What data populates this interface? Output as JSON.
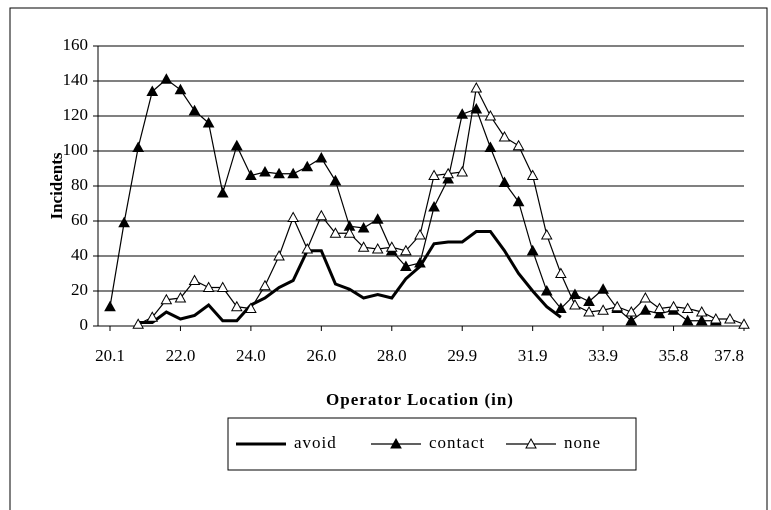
{
  "chart_data": {
    "type": "line",
    "y_label": "Incidents",
    "x_label": "Operator Location (in)",
    "categories": [
      "20.1",
      null,
      null,
      null,
      null,
      "22.0",
      null,
      null,
      null,
      null,
      "24.0",
      null,
      null,
      null,
      null,
      "26.0",
      null,
      null,
      null,
      null,
      "28.0",
      null,
      null,
      null,
      null,
      "29.9",
      null,
      null,
      null,
      null,
      "31.9",
      null,
      null,
      null,
      null,
      "33.9",
      null,
      null,
      null,
      null,
      "35.8",
      null,
      null,
      null,
      null,
      "37.8"
    ],
    "series": [
      {
        "name": "avoid",
        "color": "#000000",
        "marker": "none",
        "values": [
          null,
          null,
          2,
          2,
          8,
          4,
          6,
          12,
          3,
          3,
          12,
          16,
          22,
          26,
          43,
          43,
          24,
          21,
          16,
          18,
          16,
          27,
          34,
          47,
          48,
          48,
          54,
          54,
          43,
          30,
          20,
          11,
          5,
          null,
          null,
          null,
          null,
          null,
          null,
          null,
          null,
          null,
          null,
          null,
          null,
          null
        ]
      },
      {
        "name": "contact",
        "color": "#000000",
        "marker": "filled-triangle",
        "values": [
          11,
          59,
          102,
          134,
          141,
          135,
          123,
          116,
          76,
          103,
          86,
          88,
          87,
          87,
          91,
          96,
          83,
          57,
          56,
          61,
          43,
          34,
          36,
          68,
          84,
          121,
          124,
          102,
          82,
          71,
          43,
          20,
          10,
          18,
          14,
          21,
          10,
          3,
          9,
          7,
          9,
          3,
          3,
          3,
          null,
          null
        ]
      },
      {
        "name": "none",
        "color": "#000000",
        "marker": "open-triangle",
        "values": [
          null,
          null,
          1,
          5,
          15,
          16,
          26,
          22,
          22,
          11,
          10,
          23,
          40,
          62,
          44,
          63,
          53,
          53,
          45,
          44,
          45,
          43,
          52,
          86,
          87,
          88,
          136,
          120,
          108,
          103,
          86,
          52,
          30,
          12,
          8,
          9,
          11,
          8,
          16,
          10,
          11,
          10,
          8,
          4,
          4,
          1
        ]
      }
    ],
    "ylim": [
      0,
      160
    ],
    "yticks": [
      0,
      20,
      40,
      60,
      80,
      100,
      120,
      140,
      160
    ],
    "grid": true,
    "legend": "bottom"
  }
}
